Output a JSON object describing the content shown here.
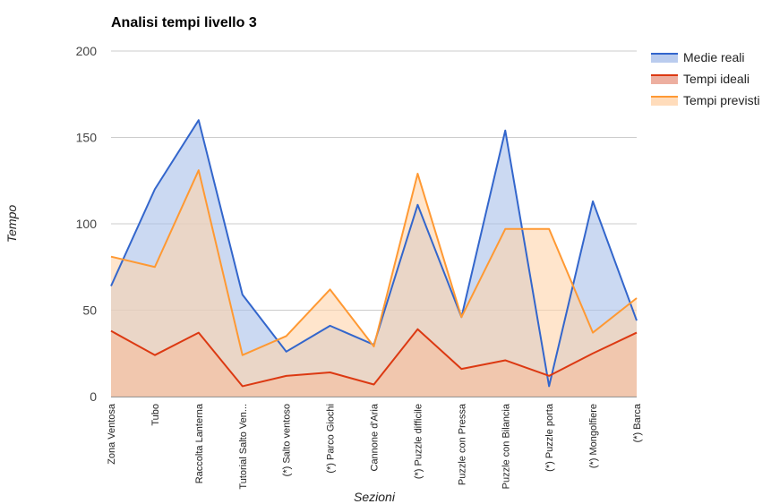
{
  "chart_data": {
    "type": "area",
    "title": "Analisi tempi livello 3",
    "xlabel": "Sezioni",
    "ylabel": "Tempo",
    "ylim": [
      0,
      200
    ],
    "yticks": [
      0,
      50,
      100,
      150,
      200
    ],
    "grid": true,
    "legend_position": "right",
    "categories": [
      "Zona Ventosa",
      "Tubo",
      "Raccolta Lanterna",
      "Tutorial Salto Ven...",
      "(*) Salto ventoso",
      "(*) Parco Giochi",
      "Cannone d'Aria",
      "(*) Puzzle difficile",
      "Puzzle con Pressa",
      "Puzzle con Bilancia",
      "(*) Puzzle porta",
      "(*) Mongolfiere",
      "(*) Barca"
    ],
    "series": [
      {
        "name": "Medie reali",
        "color": "#3366cc",
        "fill": "#a9bfea",
        "values": [
          64,
          120,
          160,
          59,
          26,
          41,
          30,
          111,
          46,
          154,
          6,
          113,
          44
        ]
      },
      {
        "name": "Tempi ideali",
        "color": "#dc3912",
        "fill": "#e99b88",
        "values": [
          38,
          24,
          37,
          6,
          12,
          14,
          7,
          39,
          16,
          21,
          12,
          25,
          37
        ]
      },
      {
        "name": "Tempi previsti",
        "color": "#ff9933",
        "fill": "#ffd3aa",
        "values": [
          81,
          75,
          131,
          24,
          35,
          62,
          29,
          129,
          46,
          97,
          97,
          37,
          57
        ]
      }
    ]
  }
}
